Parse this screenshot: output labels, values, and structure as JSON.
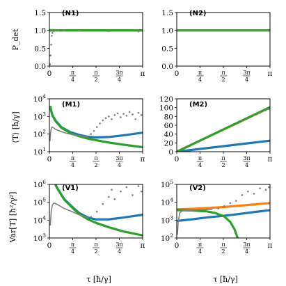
{
  "chart_data": [
    {
      "type": "scatter",
      "panel": "N1",
      "ylabel": "P_det",
      "ylim": [
        0.0,
        1.5
      ],
      "yscale": "linear",
      "yticks": [
        "0.0",
        "0.5",
        "1.0",
        "1.5"
      ],
      "xlim": [
        0,
        3.1416
      ],
      "xticks": [
        "0",
        "π/4",
        "π/2",
        "3π/4",
        "π"
      ],
      "series": [
        {
          "color": "#1f77b4",
          "values_desc": "constant",
          "x": [
            0.0,
            3.1416
          ],
          "y": [
            1.0,
            1.0
          ]
        },
        {
          "color": "#ff7f0e",
          "x": [
            0.0,
            3.1416
          ],
          "y": [
            1.0,
            1.0
          ]
        },
        {
          "color": "#2ca02c",
          "x": [
            0.0,
            3.1416
          ],
          "y": [
            1.0,
            1.0
          ]
        },
        {
          "color": "#808080",
          "style": "dots",
          "x": [
            0.02,
            0.04,
            0.06,
            0.08,
            0.1,
            0.14,
            0.2,
            0.3,
            0.5,
            1.0,
            2.0,
            3.0
          ],
          "y": [
            0.05,
            0.3,
            0.6,
            0.85,
            0.93,
            0.98,
            0.99,
            1.0,
            1.0,
            0.99,
            0.98,
            0.97
          ]
        }
      ]
    },
    {
      "type": "scatter",
      "panel": "N2",
      "ylim": [
        0.0,
        1.5
      ],
      "yscale": "linear",
      "yticks": [
        "0.0",
        "0.5",
        "1.0",
        "1.5"
      ],
      "xlim": [
        0,
        3.1416
      ],
      "xticks": [
        "0",
        "π/4",
        "π/2",
        "3π/4",
        "π"
      ],
      "series": [
        {
          "color": "#1f77b4",
          "x": [
            0.0,
            3.1416
          ],
          "y": [
            1.0,
            1.0
          ]
        },
        {
          "color": "#ff7f0e",
          "x": [
            0.0,
            3.1416
          ],
          "y": [
            1.0,
            1.0
          ]
        },
        {
          "color": "#2ca02c",
          "x": [
            0.0,
            3.1416
          ],
          "y": [
            1.0,
            1.0
          ]
        },
        {
          "color": "#808080",
          "style": "line",
          "x": [
            0.0,
            3.1416
          ],
          "y": [
            1.0,
            1.0
          ]
        }
      ]
    },
    {
      "type": "line",
      "panel": "M1",
      "ylabel": "⟨T⟩ [ħ/γ]",
      "yscale": "log",
      "ylim": [
        10,
        10000
      ],
      "yticks": [
        "10^1",
        "10^2",
        "10^3",
        "10^4"
      ],
      "xlim": [
        0,
        3.1416
      ],
      "xticks": [
        "0",
        "π/4",
        "π/2",
        "3π/4",
        "π"
      ],
      "series": [
        {
          "color": "#1f77b4",
          "x": [
            0.03,
            0.05,
            0.1,
            0.2,
            0.4,
            0.7,
            1.0,
            1.3,
            1.57,
            2.0,
            2.5,
            3.14
          ],
          "y": [
            4000,
            2500,
            1200,
            600,
            250,
            130,
            90,
            70,
            65,
            68,
            85,
            120
          ]
        },
        {
          "color": "#2ca02c",
          "x": [
            0.03,
            0.05,
            0.1,
            0.2,
            0.4,
            0.7,
            1.0,
            1.3,
            1.57,
            2.0,
            2.5,
            3.14
          ],
          "y": [
            4000,
            2400,
            1150,
            560,
            230,
            115,
            75,
            55,
            45,
            33,
            25,
            18
          ]
        },
        {
          "color": "#808080",
          "style": "solid",
          "x": [
            0.02,
            0.04,
            0.06,
            0.08,
            0.1,
            0.15,
            0.2,
            0.3,
            0.5,
            0.8,
            1.0,
            1.3
          ],
          "y": [
            40,
            120,
            200,
            240,
            250,
            220,
            190,
            160,
            120,
            90,
            80,
            70
          ]
        },
        {
          "color": "#808080",
          "style": "dots",
          "x": [
            1.4,
            1.5,
            1.6,
            1.7,
            1.8,
            1.9,
            2.0,
            2.1,
            2.2,
            2.3,
            2.4,
            2.5,
            2.6,
            2.7,
            2.8,
            2.9,
            3.0,
            3.1
          ],
          "y": [
            100,
            150,
            250,
            400,
            600,
            800,
            1000,
            700,
            1200,
            1500,
            900,
            1400,
            1100,
            1800,
            1300,
            700,
            1600,
            1200
          ]
        }
      ]
    },
    {
      "type": "line",
      "panel": "M2",
      "yscale": "linear",
      "ylim": [
        0,
        120
      ],
      "yticks": [
        "0",
        "20",
        "40",
        "60",
        "80",
        "100",
        "120"
      ],
      "xlim": [
        0,
        3.1416
      ],
      "xticks": [
        "0",
        "π/4",
        "π/2",
        "3π/4",
        "π"
      ],
      "series": [
        {
          "color": "#1f77b4",
          "x": [
            0.0,
            3.1416
          ],
          "y": [
            0,
            25
          ]
        },
        {
          "color": "#ff7f0e",
          "x": [
            0.0,
            3.1416
          ],
          "y": [
            0,
            100
          ]
        },
        {
          "color": "#2ca02c",
          "x": [
            0.0,
            3.1416
          ],
          "y": [
            0,
            101
          ]
        },
        {
          "color": "#808080",
          "style": "dots",
          "x": [
            2.2,
            2.4,
            2.6,
            2.8,
            3.0,
            3.1
          ],
          "y": [
            70,
            76,
            83,
            88,
            94,
            97
          ]
        }
      ]
    },
    {
      "type": "line",
      "panel": "V1",
      "ylabel": "Var[T] [ħ²/γ²]",
      "yscale": "log",
      "ylim": [
        1000,
        1000000
      ],
      "yticks": [
        "10^3",
        "10^4",
        "10^5",
        "10^6"
      ],
      "xlim": [
        0,
        3.1416
      ],
      "xticks": [
        "0",
        "π/4",
        "π/2",
        "3π/4",
        "π"
      ],
      "series": [
        {
          "color": "#1f77b4",
          "x": [
            0.2,
            0.3,
            0.5,
            0.8,
            1.0,
            1.3,
            1.57,
            2.0,
            2.5,
            3.14
          ],
          "y": [
            1000000,
            500000,
            150000,
            50000,
            25000,
            14000,
            11000,
            11000,
            14000,
            20000
          ]
        },
        {
          "color": "#2ca02c",
          "x": [
            0.2,
            0.3,
            0.5,
            0.8,
            1.0,
            1.3,
            1.57,
            2.0,
            2.5,
            3.14
          ],
          "y": [
            950000,
            480000,
            140000,
            45000,
            22000,
            11000,
            7000,
            4000,
            2300,
            1400
          ]
        },
        {
          "color": "#808080",
          "style": "solid",
          "x": [
            0.03,
            0.06,
            0.1,
            0.15,
            0.2,
            0.3,
            0.5,
            0.8,
            1.0,
            1.3
          ],
          "y": [
            5000,
            30000,
            70000,
            90000,
            85000,
            70000,
            45000,
            28000,
            20000,
            14000
          ]
        },
        {
          "color": "#808080",
          "style": "dots",
          "x": [
            1.4,
            1.6,
            1.8,
            2.0,
            2.1,
            2.2,
            2.4,
            2.6,
            2.8,
            3.0,
            3.1
          ],
          "y": [
            15000,
            30000,
            80000,
            200000,
            500000,
            150000,
            400000,
            700000,
            250000,
            800000,
            400000
          ]
        }
      ]
    },
    {
      "type": "line",
      "panel": "V2",
      "yscale": "log",
      "ylim": [
        100,
        100000
      ],
      "yticks": [
        "10^2",
        "10^3",
        "10^4",
        "10^5"
      ],
      "xlim": [
        0,
        3.1416
      ],
      "xticks": [
        "0",
        "π/4",
        "π/2",
        "3π/4",
        "π"
      ],
      "series": [
        {
          "color": "#1f77b4",
          "x": [
            0.0,
            0.5,
            1.0,
            1.5,
            2.0,
            2.5,
            3.14
          ],
          "y": [
            900,
            1100,
            1400,
            1700,
            2100,
            2700,
            3600
          ]
        },
        {
          "color": "#ff7f0e",
          "x": [
            0.0,
            0.5,
            1.0,
            1.5,
            2.0,
            2.5,
            3.14
          ],
          "y": [
            4000,
            4300,
            4700,
            5300,
            6200,
            7300,
            9000
          ]
        },
        {
          "color": "#2ca02c",
          "x": [
            0.0,
            0.5,
            1.0,
            1.3,
            1.6,
            1.8,
            1.95,
            2.05
          ],
          "y": [
            3600,
            3500,
            3100,
            2500,
            1600,
            800,
            300,
            100
          ]
        },
        {
          "color": "#808080",
          "style": "solid",
          "x": [
            0.02,
            0.05,
            0.1,
            0.2,
            0.4,
            0.8,
            1.2
          ],
          "y": [
            150,
            800,
            2500,
            3500,
            3600,
            3800,
            4000
          ]
        },
        {
          "color": "#808080",
          "style": "dots",
          "x": [
            1.4,
            1.6,
            1.8,
            2.0,
            2.2,
            2.4,
            2.6,
            2.8,
            3.0,
            3.1
          ],
          "y": [
            4500,
            6000,
            9000,
            12000,
            25000,
            40000,
            30000,
            60000,
            50000,
            70000
          ]
        }
      ]
    }
  ],
  "xlabel": "τ  [ħ/γ]",
  "panel_labels": [
    "(N1)",
    "(N2)",
    "(M1)",
    "(M2)",
    "(V1)",
    "(V2)"
  ],
  "ylabels": [
    "P_det",
    "⟨T⟩  [ħ/γ]",
    "Var[T]  [ħ²/γ²]"
  ],
  "colors": {
    "blue": "#1f77b4",
    "orange": "#ff7f0e",
    "green": "#2ca02c",
    "gray": "#808080"
  }
}
